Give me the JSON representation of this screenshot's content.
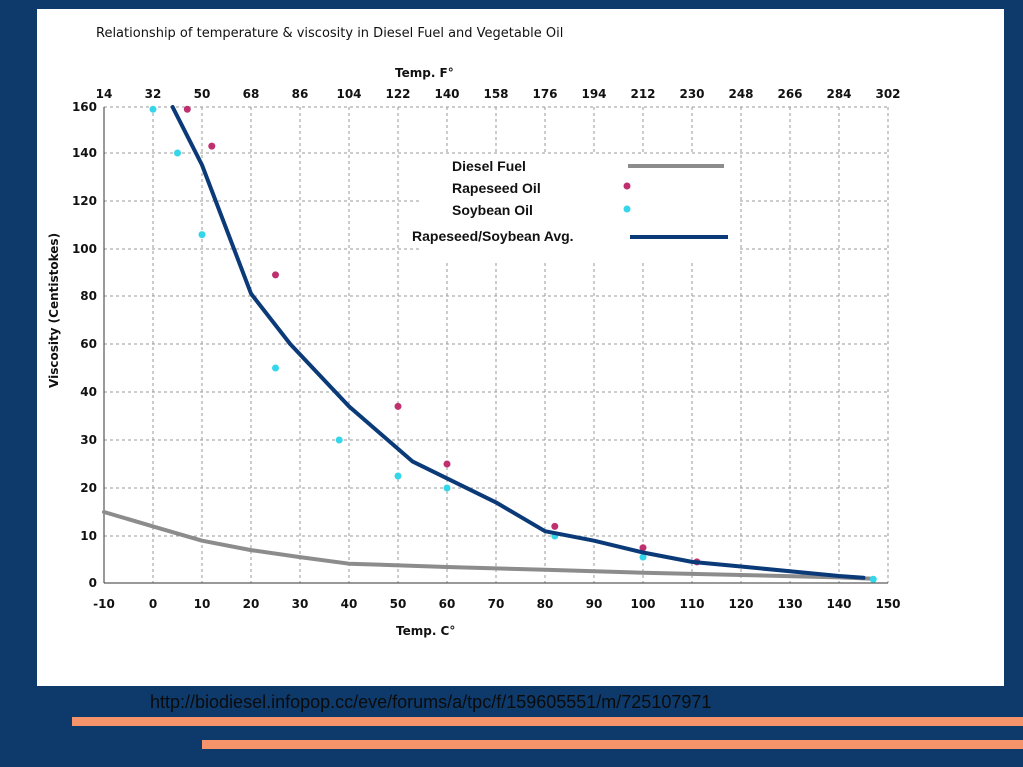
{
  "colors": {
    "background": "#0d3a6b",
    "panel": "#ffffff",
    "stripe": "#f5946a",
    "diesel": "#8c8c8c",
    "rapeseed": "#c0306e",
    "soybean": "#36d6ea",
    "average": "#0b3a78"
  },
  "source_url": "http://biodiesel.infopop.cc/eve/forums/a/tpc/f/159605551/m/725107971",
  "chart_data": {
    "type": "line",
    "title": "Relationship of temperature & viscosity in Diesel Fuel and Vegetable Oil",
    "xlabel": "Temp. C°",
    "x2label": "Temp. F°",
    "ylabel": "Viscosity (Centistokes)",
    "x_ticks": [
      "-10",
      "0",
      "10",
      "20",
      "30",
      "40",
      "50",
      "60",
      "70",
      "80",
      "90",
      "100",
      "110",
      "120",
      "130",
      "140",
      "150"
    ],
    "x2_ticks": [
      "14",
      "32",
      "50",
      "68",
      "86",
      "104",
      "122",
      "140",
      "158",
      "176",
      "194",
      "212",
      "230",
      "248",
      "266",
      "284",
      "302"
    ],
    "y_ticks": [
      "0",
      "10",
      "20",
      "30",
      "40",
      "60",
      "80",
      "100",
      "120",
      "140",
      "160"
    ],
    "y_scale": "non-linear (0-40 step 10, 40-160 step 20)",
    "xlim": [
      -10,
      150
    ],
    "grid": true,
    "legend_position": "upper-right",
    "series": [
      {
        "name": "Diesel Fuel",
        "kind": "line",
        "color": "#8c8c8c",
        "points": [
          [
            -10,
            15
          ],
          [
            0,
            12
          ],
          [
            10,
            9
          ],
          [
            20,
            7
          ],
          [
            30,
            5.5
          ],
          [
            40,
            4.1
          ],
          [
            60,
            3.4
          ],
          [
            80,
            2.8
          ],
          [
            100,
            2.2
          ],
          [
            120,
            1.7
          ],
          [
            140,
            1.2
          ],
          [
            147,
            0.9
          ]
        ]
      },
      {
        "name": "Rapeseed Oil",
        "kind": "scatter",
        "color": "#c0306e",
        "points": [
          [
            7,
            159
          ],
          [
            12,
            143
          ],
          [
            25,
            89
          ],
          [
            50,
            37
          ],
          [
            60,
            25
          ],
          [
            82,
            12
          ],
          [
            100,
            7.5
          ],
          [
            111,
            4.5
          ]
        ]
      },
      {
        "name": "Soybean Oil",
        "kind": "scatter",
        "color": "#36d6ea",
        "points": [
          [
            0,
            159
          ],
          [
            5,
            140
          ],
          [
            10,
            106
          ],
          [
            25,
            50
          ],
          [
            38,
            30
          ],
          [
            50,
            22.5
          ],
          [
            60,
            20
          ],
          [
            82,
            10
          ],
          [
            100,
            5.5
          ],
          [
            147,
            0.8
          ]
        ]
      },
      {
        "name": "Rapeseed/Soybean Avg.",
        "kind": "line",
        "color": "#0b3a78",
        "points": [
          [
            4,
            160
          ],
          [
            10,
            135
          ],
          [
            20,
            81
          ],
          [
            28,
            60
          ],
          [
            40,
            37
          ],
          [
            53,
            25.5
          ],
          [
            70,
            17
          ],
          [
            80,
            11
          ],
          [
            90,
            9
          ],
          [
            100,
            6.5
          ],
          [
            110,
            4.5
          ],
          [
            120,
            3.5
          ],
          [
            130,
            2.5
          ],
          [
            140,
            1.5
          ],
          [
            145,
            1.1
          ]
        ]
      }
    ]
  }
}
